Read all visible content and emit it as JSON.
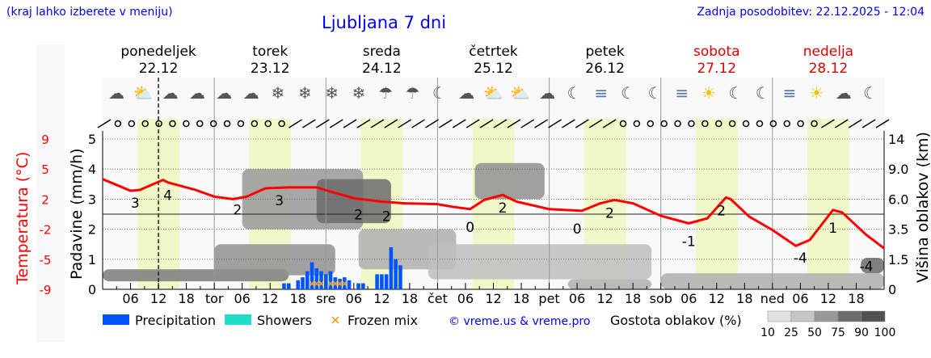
{
  "header": {
    "left_note": "(kraj lahko izberete v meniju)",
    "title": "Ljubljana 7 dni",
    "updated": "Zadnja posodobitev: 22.12.2025 - 12:04"
  },
  "days": [
    {
      "name": "ponedeljek",
      "date": "22.12",
      "weekend": false
    },
    {
      "name": "torek",
      "date": "23.12",
      "weekend": false
    },
    {
      "name": "sreda",
      "date": "24.12",
      "weekend": false
    },
    {
      "name": "četrtek",
      "date": "25.12",
      "weekend": false
    },
    {
      "name": "petek",
      "date": "26.12",
      "weekend": false
    },
    {
      "name": "sobota",
      "date": "27.12",
      "weekend": true
    },
    {
      "name": "nedelja",
      "date": "28.12",
      "weekend": true
    }
  ],
  "colors": {
    "temperature": "#ff0000",
    "precipitation": "#0055ff",
    "showers": "#22ddcc",
    "frozen": "#f0a020",
    "daylight": "#f0f8c8",
    "weekend": "#dd0000",
    "link": "#0000ff"
  },
  "weather_icons": [
    "cloud",
    "sun-cloud",
    "cloud",
    "cloud",
    "cloud",
    "cloud",
    "snow-cloud",
    "snow-cloud",
    "snow-cloud",
    "snow-cloud",
    "rain-cloud",
    "rain-cloud",
    "moon",
    "cloud",
    "sun-cloud",
    "sun-cloud",
    "cloud",
    "moon",
    "fog",
    "moon",
    "moon-fog",
    "fog",
    "sun-fog",
    "moon-fog",
    "moon-fog",
    "fog",
    "sun",
    "cloud",
    "moon-cloud"
  ],
  "wind": [
    "barb",
    "calm",
    "calm",
    "calm",
    "calm",
    "calm",
    "calm",
    "calm",
    "calm",
    "calm",
    "calm",
    "calm",
    "calm",
    "calm",
    "barb",
    "barb",
    "barb",
    "barb",
    "barb",
    "barb",
    "barb",
    "barb",
    "barb",
    "barb",
    "barb",
    "barb",
    "barb",
    "barb",
    "barb",
    "barb",
    "barb",
    "barb",
    "barb",
    "barb",
    "barb",
    "barb",
    "barb",
    "barb",
    "calm",
    "calm",
    "calm",
    "calm",
    "calm",
    "calm",
    "calm",
    "calm",
    "calm",
    "calm",
    "calm",
    "calm",
    "calm",
    "calm",
    "calm",
    "barb",
    "barb",
    "barb",
    "barb",
    "barb"
  ],
  "chart_data": {
    "type": "line",
    "x_unit": "hours from 22.12 00:00",
    "x_range": [
      0,
      168
    ],
    "x_tick_labels": [
      "06",
      "12",
      "18",
      "tor",
      "06",
      "12",
      "18",
      "sre",
      "06",
      "12",
      "18",
      "čet",
      "06",
      "12",
      "18",
      "pet",
      "06",
      "12",
      "18",
      "sob",
      "06",
      "12",
      "18",
      "ned",
      "06",
      "12",
      "18"
    ],
    "current_time_hour": 12,
    "daylight_hours": [
      7.5,
      16.5
    ],
    "left_axis_precip": {
      "label": "Padavine (mm/h)",
      "range": [
        0,
        5
      ],
      "ticks": [
        0,
        1,
        2,
        3,
        4,
        5
      ]
    },
    "left_axis_temp": {
      "label": "Temperatura (°C)",
      "ticks": [
        9,
        5,
        2,
        -2,
        -5,
        -9
      ]
    },
    "right_axis": {
      "label": "Višina oblakov (km)",
      "ticks": [
        0,
        1.5,
        3.5,
        6.0,
        9.0,
        14
      ]
    },
    "temperature": {
      "hours": [
        0,
        6,
        8,
        13,
        14,
        20,
        24,
        28,
        31,
        35,
        40,
        46,
        49,
        54,
        60,
        65,
        72,
        75,
        79,
        82,
        86,
        89,
        96,
        103,
        107,
        110,
        114,
        120,
        126,
        130,
        134,
        135,
        139,
        144,
        149,
        152,
        157,
        159,
        164,
        168
      ],
      "values": [
        4.2,
        2.8,
        2.9,
        4.1,
        3.8,
        2.9,
        2.1,
        1.8,
        2.1,
        3.1,
        3.2,
        3.2,
        2.7,
        1.9,
        1.5,
        1.3,
        1.2,
        0.9,
        0.6,
        1.7,
        2.3,
        1.5,
        0.6,
        0.4,
        1.3,
        1.7,
        1.3,
        -0.2,
        -1.1,
        -0.5,
        2.0,
        1.8,
        -0.3,
        -1.9,
        -3.8,
        -3.1,
        0.5,
        0.2,
        -2.4,
        -4.1
      ]
    },
    "temperature_labels": [
      {
        "hour": 7,
        "text": "3"
      },
      {
        "hour": 14,
        "text": "4"
      },
      {
        "hour": 29,
        "text": "2"
      },
      {
        "hour": 38,
        "text": "3"
      },
      {
        "hour": 55,
        "text": "2"
      },
      {
        "hour": 61,
        "text": "2"
      },
      {
        "hour": 79,
        "text": "0"
      },
      {
        "hour": 86,
        "text": "2"
      },
      {
        "hour": 102,
        "text": "0"
      },
      {
        "hour": 109,
        "text": "2"
      },
      {
        "hour": 126,
        "text": "-1"
      },
      {
        "hour": 133,
        "text": "2"
      },
      {
        "hour": 150,
        "text": "-4"
      },
      {
        "hour": 157,
        "text": "1"
      },
      {
        "hour": 167,
        "text": "-4"
      }
    ],
    "precipitation": {
      "hours": [
        39,
        40,
        42,
        43,
        44,
        45,
        46,
        47,
        48,
        49,
        50,
        51,
        52,
        53,
        55,
        56,
        59,
        60,
        61,
        62,
        63,
        64
      ],
      "values": [
        0.2,
        0.2,
        0.3,
        0.4,
        0.6,
        0.9,
        0.7,
        0.6,
        0.5,
        0.6,
        0.4,
        0.35,
        0.4,
        0.3,
        0.2,
        0.2,
        0.5,
        0.5,
        0.5,
        1.4,
        1.0,
        0.8
      ]
    },
    "frozen_mix_hours": [
      45,
      46,
      47,
      49,
      50,
      51,
      52
    ],
    "cloud_density_layers": [
      {
        "h": [
          0,
          40
        ],
        "km": [
          0.4,
          1.0
        ],
        "density": 75
      },
      {
        "h": [
          24,
          50
        ],
        "km": [
          0.7,
          2.5
        ],
        "density": 60
      },
      {
        "h": [
          30,
          56
        ],
        "km": [
          3.5,
          9.0
        ],
        "density": 55
      },
      {
        "h": [
          46,
          62
        ],
        "km": [
          4.0,
          8.0
        ],
        "density": 85
      },
      {
        "h": [
          55,
          76
        ],
        "km": [
          1.0,
          3.5
        ],
        "density": 40
      },
      {
        "h": [
          80,
          95
        ],
        "km": [
          6.0,
          10.0
        ],
        "density": 60
      },
      {
        "h": [
          70,
          118
        ],
        "km": [
          0.5,
          2.5
        ],
        "density": 30
      },
      {
        "h": [
          100,
          118
        ],
        "km": [
          0,
          0.5
        ],
        "density": 40
      },
      {
        "h": [
          120,
          168
        ],
        "km": [
          0,
          0.8
        ],
        "density": 40
      },
      {
        "h": [
          163,
          168
        ],
        "km": [
          0.8,
          1.6
        ],
        "density": 85
      }
    ]
  },
  "legend": {
    "precipitation": "Precipitation",
    "showers": "Showers",
    "frozen": "Frozen mix",
    "copyright": "© vreme.us & vreme.pro",
    "cloud_density_title": "Gostota oblakov (%)",
    "cloud_density_scale": [
      "10",
      "25",
      "50",
      "75",
      "90",
      "100"
    ]
  }
}
